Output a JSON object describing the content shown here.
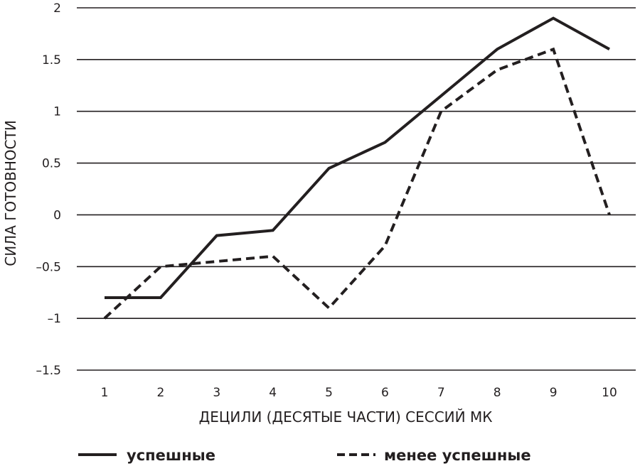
{
  "chart_data": {
    "type": "line",
    "title": "",
    "xlabel": "ДЕЦИЛИ (ДЕСЯТЫЕ ЧАСТИ) СЕССИЙ МК",
    "ylabel": "СИЛА ГОТОВНОСТИ",
    "x": [
      1,
      2,
      3,
      4,
      5,
      6,
      7,
      8,
      9,
      10
    ],
    "x_tick_labels": [
      "1",
      "2",
      "3",
      "4",
      "5",
      "6",
      "7",
      "8",
      "9",
      "10"
    ],
    "y_ticks": [
      2,
      1.5,
      1,
      0.5,
      0,
      -0.5,
      -1,
      -1.5
    ],
    "y_tick_labels": [
      "2",
      "1.5",
      "1",
      "0.5",
      "0",
      "–0.5",
      "–1",
      "–1.5"
    ],
    "ylim": [
      -1.5,
      2
    ],
    "grid": "horizontal",
    "legend_position": "bottom",
    "series": [
      {
        "name": "успешные",
        "style": "solid",
        "color": "#231f20",
        "values": [
          -0.8,
          -0.8,
          -0.2,
          -0.15,
          0.45,
          0.7,
          1.15,
          1.6,
          1.9,
          1.6
        ]
      },
      {
        "name": "менее успешные",
        "style": "dashed",
        "color": "#231f20",
        "values": [
          -1.0,
          -0.5,
          -0.45,
          -0.4,
          -0.9,
          -0.3,
          1.0,
          1.4,
          1.6,
          0.0
        ]
      }
    ]
  }
}
